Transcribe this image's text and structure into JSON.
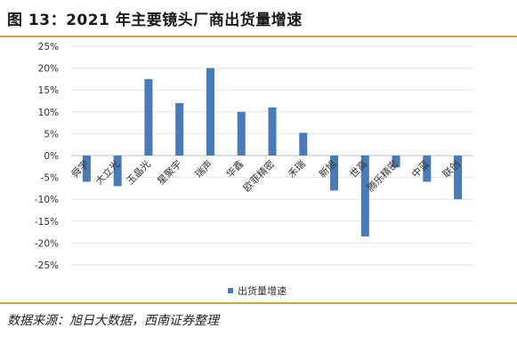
{
  "figure_title": "图 13：2021 年主要镜头厂商出货量增速",
  "source": "数据来源：旭日大数据，西南证券整理",
  "colors": {
    "bar": "#4a7ab8",
    "grid": "#e6e6e6",
    "axis": "#bfbfbf",
    "rule": "#c9a24a"
  },
  "chart_data": {
    "type": "bar",
    "title": "",
    "xlabel": "",
    "ylabel": "",
    "ylim": [
      -0.25,
      0.25
    ],
    "yticks": [
      "25%",
      "20%",
      "15%",
      "10%",
      "5%",
      "0%",
      "-5%",
      "-10%",
      "-15%",
      "-20%",
      "-25%"
    ],
    "ytick_values": [
      0.25,
      0.2,
      0.15,
      0.1,
      0.05,
      0,
      -0.05,
      -0.1,
      -0.15,
      -0.2,
      -0.25
    ],
    "categories": [
      "舜宇",
      "大立光",
      "玉晶光",
      "星聚宇",
      "瑞声",
      "华鑫",
      "欧菲精密",
      "禾瑞",
      "新旭",
      "世高",
      "腾乐精密",
      "中蓝",
      "联创"
    ],
    "series": [
      {
        "name": "出货量增速",
        "values": [
          -0.06,
          -0.07,
          0.175,
          0.12,
          0.2,
          0.1,
          0.11,
          0.052,
          -0.08,
          -0.185,
          -0.027,
          -0.06,
          -0.1
        ]
      }
    ],
    "legend": {
      "position": "bottom"
    },
    "grid": true
  }
}
